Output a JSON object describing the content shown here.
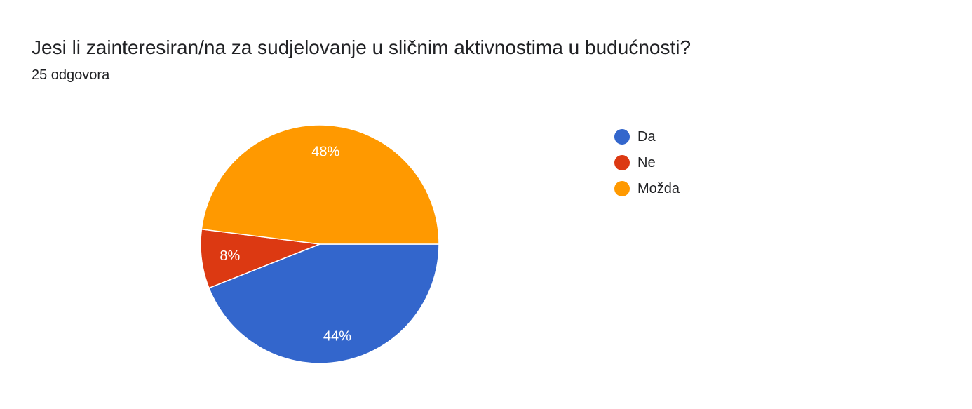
{
  "header": {
    "question": "Jesi li zainteresiran/na za sudjelovanje u sličnim aktivnostima u budućnosti?",
    "response_count": "25 odgovora"
  },
  "chart_data": {
    "type": "pie",
    "title": "Jesi li zainteresiran/na za sudjelovanje u sličnim aktivnostima u budućnosti?",
    "subtitle": "25 odgovora",
    "categories": [
      "Da",
      "Ne",
      "Možda"
    ],
    "values": [
      44,
      8,
      48
    ],
    "labels": [
      "44%",
      "8%",
      "48%"
    ],
    "colors": [
      "#3366cc",
      "#dc3912",
      "#ff9900"
    ],
    "legend_position": "right",
    "start_angle_deg": 90,
    "direction": "clockwise"
  }
}
